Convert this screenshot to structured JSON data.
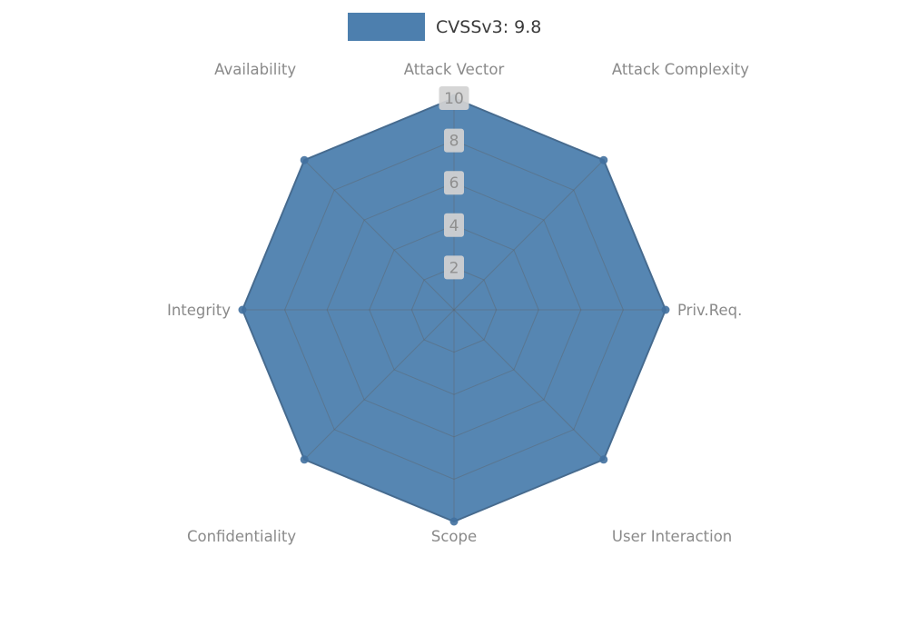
{
  "legend": {
    "label": "CVSSv3: 9.8",
    "swatch_color": "#4d7fae"
  },
  "chart_data": {
    "type": "radar",
    "categories": [
      "Attack Vector",
      "Attack Complexity",
      "Priv.Req.",
      "User Interaction",
      "Scope",
      "Confidentiality",
      "Integrity",
      "Availability"
    ],
    "series": [
      {
        "name": "CVSSv3: 9.8",
        "values": [
          10,
          10,
          10,
          10,
          10,
          10,
          10,
          10
        ]
      }
    ],
    "ticks": [
      2,
      4,
      6,
      8,
      10
    ],
    "rlim": [
      0,
      10
    ],
    "legend_position": "top-center",
    "grid": true,
    "fill_color": "#4d7fae",
    "line_color": "#41709e",
    "grid_color": "#5e5e5e",
    "label_color": "#8a8a8a",
    "tick_bg": "#d3d3d3",
    "tick_color": "#8f8f8f"
  }
}
